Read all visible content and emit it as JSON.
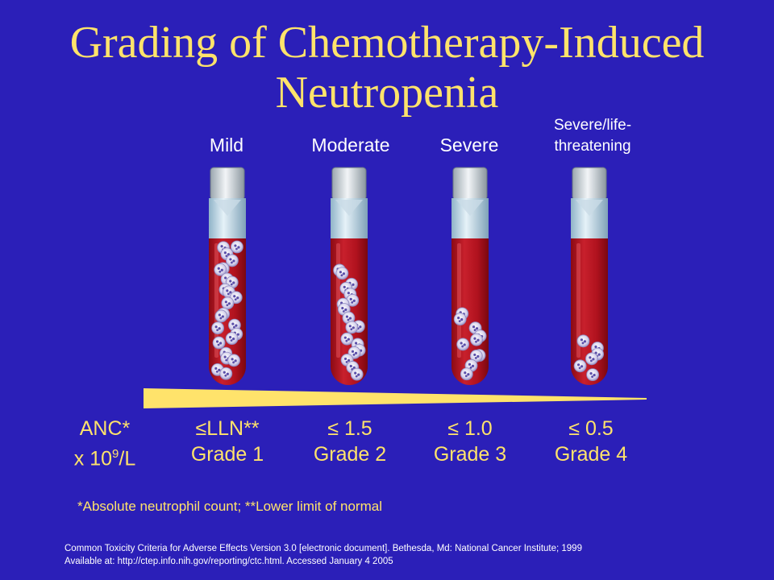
{
  "title": "Grading of Chemotherapy-Induced Neutropenia",
  "severity_labels": {
    "mild": "Mild",
    "moderate": "Moderate",
    "severe": "Severe",
    "life_threatening_line1": "Severe/life-",
    "life_threatening_line2": "threatening"
  },
  "anc_label": {
    "line1": "ANC*",
    "line2_prefix": "x 10",
    "exponent": "9",
    "line2_suffix": "/L"
  },
  "grades": [
    {
      "threshold": "LLN**",
      "grade": "Grade 1"
    },
    {
      "threshold": "1.5",
      "grade": "Grade 2"
    },
    {
      "threshold": "1.0",
      "grade": "Grade 3"
    },
    {
      "threshold": "0.5",
      "grade": "Grade 4"
    }
  ],
  "le_symbol": "≤",
  "footnote": "*Absolute neutrophil count; **Lower limit of normal",
  "citation_line1": "Common Toxicity Criteria for Adverse Effects Version 3.0 [electronic document]. Bethesda, Md: National Cancer Institute; 1999",
  "citation_line2": "Available at: http://ctep.info.nih.gov/reporting/ctc.html. Accessed January 4 2005",
  "colors": {
    "background": "#2b1fb8",
    "title": "#ffe36b",
    "blood": "#b5101c",
    "wedge": "#ffe36b"
  }
}
